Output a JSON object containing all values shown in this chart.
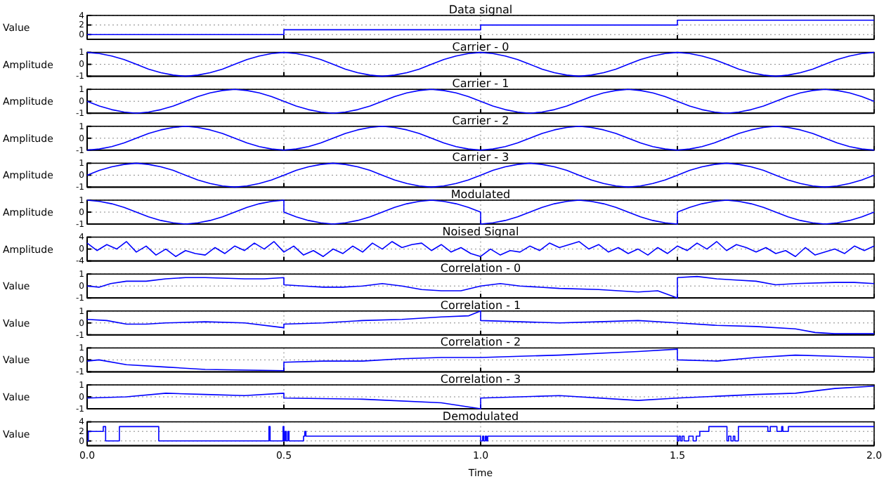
{
  "chart_data": [
    {
      "type": "step",
      "title": "Data signal",
      "ylabel": "Value",
      "x": [
        0,
        0.5,
        1,
        1.5,
        2
      ],
      "values": [
        0,
        1,
        2,
        3,
        3
      ],
      "color": "#0000ff",
      "xlim": [
        0,
        2
      ],
      "ylim": [
        -1,
        4
      ],
      "xticks": [
        0,
        0.5,
        1,
        1.5,
        2
      ],
      "yticks": [
        0,
        2,
        4
      ],
      "grid": true,
      "tick_labels": "y"
    },
    {
      "type": "line",
      "title": "Carrier - 0",
      "ylabel": "Amplitude",
      "x": [
        0,
        0.03125,
        0.0625,
        0.09375,
        0.125,
        0.15625,
        0.1875,
        0.21875,
        0.25,
        0.28125,
        0.3125,
        0.34375,
        0.375,
        0.40625,
        0.4375,
        0.46875,
        0.5,
        0.53125,
        0.5625,
        0.59375,
        0.625,
        0.65625,
        0.6875,
        0.71875,
        0.75,
        0.78125,
        0.8125,
        0.84375,
        0.875,
        0.90625,
        0.9375,
        0.96875,
        1,
        1.03125,
        1.0625,
        1.09375,
        1.125,
        1.15625,
        1.1875,
        1.21875,
        1.25,
        1.28125,
        1.3125,
        1.34375,
        1.375,
        1.40625,
        1.4375,
        1.46875,
        1.5,
        1.53125,
        1.5625,
        1.59375,
        1.625,
        1.65625,
        1.6875,
        1.71875,
        1.75,
        1.78125,
        1.8125,
        1.84375,
        1.875,
        1.90625,
        1.9375,
        1.96875,
        2
      ],
      "values": [
        1,
        0.9,
        0.7,
        0.4,
        0,
        -0.4,
        -0.7,
        -0.9,
        -1,
        -0.9,
        -0.7,
        -0.4,
        0,
        0.4,
        0.7,
        0.9,
        1,
        0.9,
        0.7,
        0.4,
        0,
        -0.4,
        -0.7,
        -0.9,
        -1,
        -0.9,
        -0.7,
        -0.4,
        0,
        0.4,
        0.7,
        0.9,
        1,
        0.9,
        0.7,
        0.4,
        0,
        -0.4,
        -0.7,
        -0.9,
        -1,
        -0.9,
        -0.7,
        -0.4,
        0,
        0.4,
        0.7,
        0.9,
        1,
        0.9,
        0.7,
        0.4,
        0,
        -0.4,
        -0.7,
        -0.9,
        -1,
        -0.9,
        -0.7,
        -0.4,
        0,
        0.4,
        0.7,
        0.9,
        1
      ],
      "color": "#0000ff",
      "xlim": [
        0,
        2
      ],
      "ylim": [
        -1,
        1
      ],
      "xticks": [
        0,
        0.5,
        1,
        1.5,
        2
      ],
      "yticks": [
        -1,
        0,
        1
      ],
      "grid": true,
      "tick_labels": "y"
    },
    {
      "type": "line",
      "title": "Carrier - 1",
      "ylabel": "Amplitude",
      "x": [
        0,
        0.03125,
        0.0625,
        0.09375,
        0.125,
        0.15625,
        0.1875,
        0.21875,
        0.25,
        0.28125,
        0.3125,
        0.34375,
        0.375,
        0.40625,
        0.4375,
        0.46875,
        0.5,
        0.53125,
        0.5625,
        0.59375,
        0.625,
        0.65625,
        0.6875,
        0.71875,
        0.75,
        0.78125,
        0.8125,
        0.84375,
        0.875,
        0.90625,
        0.9375,
        0.96875,
        1,
        1.03125,
        1.0625,
        1.09375,
        1.125,
        1.15625,
        1.1875,
        1.21875,
        1.25,
        1.28125,
        1.3125,
        1.34375,
        1.375,
        1.40625,
        1.4375,
        1.46875,
        1.5,
        1.53125,
        1.5625,
        1.59375,
        1.625,
        1.65625,
        1.6875,
        1.71875,
        1.75,
        1.78125,
        1.8125,
        1.84375,
        1.875,
        1.90625,
        1.9375,
        1.96875,
        2
      ],
      "values": [
        0,
        -0.4,
        -0.7,
        -0.9,
        -1,
        -0.9,
        -0.7,
        -0.4,
        0,
        0.4,
        0.7,
        0.9,
        1,
        0.9,
        0.7,
        0.4,
        0,
        -0.4,
        -0.7,
        -0.9,
        -1,
        -0.9,
        -0.7,
        -0.4,
        0,
        0.4,
        0.7,
        0.9,
        1,
        0.9,
        0.7,
        0.4,
        0,
        -0.4,
        -0.7,
        -0.9,
        -1,
        -0.9,
        -0.7,
        -0.4,
        0,
        0.4,
        0.7,
        0.9,
        1,
        0.9,
        0.7,
        0.4,
        0,
        -0.4,
        -0.7,
        -0.9,
        -1,
        -0.9,
        -0.7,
        -0.4,
        0,
        0.4,
        0.7,
        0.9,
        1,
        0.9,
        0.7,
        0.4,
        0
      ],
      "color": "#0000ff",
      "xlim": [
        0,
        2
      ],
      "ylim": [
        -1,
        1
      ],
      "xticks": [
        0,
        0.5,
        1,
        1.5,
        2
      ],
      "yticks": [
        -1,
        0,
        1
      ],
      "grid": true,
      "tick_labels": "y"
    },
    {
      "type": "line",
      "title": "Carrier - 2",
      "ylabel": "Amplitude",
      "x": [
        0,
        0.03125,
        0.0625,
        0.09375,
        0.125,
        0.15625,
        0.1875,
        0.21875,
        0.25,
        0.28125,
        0.3125,
        0.34375,
        0.375,
        0.40625,
        0.4375,
        0.46875,
        0.5,
        0.53125,
        0.5625,
        0.59375,
        0.625,
        0.65625,
        0.6875,
        0.71875,
        0.75,
        0.78125,
        0.8125,
        0.84375,
        0.875,
        0.90625,
        0.9375,
        0.96875,
        1,
        1.03125,
        1.0625,
        1.09375,
        1.125,
        1.15625,
        1.1875,
        1.21875,
        1.25,
        1.28125,
        1.3125,
        1.34375,
        1.375,
        1.40625,
        1.4375,
        1.46875,
        1.5,
        1.53125,
        1.5625,
        1.59375,
        1.625,
        1.65625,
        1.6875,
        1.71875,
        1.75,
        1.78125,
        1.8125,
        1.84375,
        1.875,
        1.90625,
        1.9375,
        1.96875,
        2
      ],
      "values": [
        -1,
        -0.9,
        -0.7,
        -0.4,
        0,
        0.4,
        0.7,
        0.9,
        1,
        0.9,
        0.7,
        0.4,
        0,
        -0.4,
        -0.7,
        -0.9,
        -1,
        -0.9,
        -0.7,
        -0.4,
        0,
        0.4,
        0.7,
        0.9,
        1,
        0.9,
        0.7,
        0.4,
        0,
        -0.4,
        -0.7,
        -0.9,
        -1,
        -0.9,
        -0.7,
        -0.4,
        0,
        0.4,
        0.7,
        0.9,
        1,
        0.9,
        0.7,
        0.4,
        0,
        -0.4,
        -0.7,
        -0.9,
        -1,
        -0.9,
        -0.7,
        -0.4,
        0,
        0.4,
        0.7,
        0.9,
        1,
        0.9,
        0.7,
        0.4,
        0,
        -0.4,
        -0.7,
        -0.9,
        -1
      ],
      "color": "#0000ff",
      "xlim": [
        0,
        2
      ],
      "ylim": [
        -1,
        1
      ],
      "xticks": [
        0,
        0.5,
        1,
        1.5,
        2
      ],
      "yticks": [
        -1,
        0,
        1
      ],
      "grid": true,
      "tick_labels": "y"
    },
    {
      "type": "line",
      "title": "Carrier - 3",
      "ylabel": "Amplitude",
      "x": [
        0,
        0.03125,
        0.0625,
        0.09375,
        0.125,
        0.15625,
        0.1875,
        0.21875,
        0.25,
        0.28125,
        0.3125,
        0.34375,
        0.375,
        0.40625,
        0.4375,
        0.46875,
        0.5,
        0.53125,
        0.5625,
        0.59375,
        0.625,
        0.65625,
        0.6875,
        0.71875,
        0.75,
        0.78125,
        0.8125,
        0.84375,
        0.875,
        0.90625,
        0.9375,
        0.96875,
        1,
        1.03125,
        1.0625,
        1.09375,
        1.125,
        1.15625,
        1.1875,
        1.21875,
        1.25,
        1.28125,
        1.3125,
        1.34375,
        1.375,
        1.40625,
        1.4375,
        1.46875,
        1.5,
        1.53125,
        1.5625,
        1.59375,
        1.625,
        1.65625,
        1.6875,
        1.71875,
        1.75,
        1.78125,
        1.8125,
        1.84375,
        1.875,
        1.90625,
        1.9375,
        1.96875,
        2
      ],
      "values": [
        0,
        0.4,
        0.7,
        0.9,
        1,
        0.9,
        0.7,
        0.4,
        0,
        -0.4,
        -0.7,
        -0.9,
        -1,
        -0.9,
        -0.7,
        -0.4,
        0,
        0.4,
        0.7,
        0.9,
        1,
        0.9,
        0.7,
        0.4,
        0,
        -0.4,
        -0.7,
        -0.9,
        -1,
        -0.9,
        -0.7,
        -0.4,
        0,
        0.4,
        0.7,
        0.9,
        1,
        0.9,
        0.7,
        0.4,
        0,
        -0.4,
        -0.7,
        -0.9,
        -1,
        -0.9,
        -0.7,
        -0.4,
        0,
        0.4,
        0.7,
        0.9,
        1,
        0.9,
        0.7,
        0.4,
        0,
        -0.4,
        -0.7,
        -0.9,
        -1,
        -0.9,
        -0.7,
        -0.4,
        0
      ],
      "color": "#0000ff",
      "xlim": [
        0,
        2
      ],
      "ylim": [
        -1,
        1
      ],
      "xticks": [
        0,
        0.5,
        1,
        1.5,
        2
      ],
      "yticks": [
        -1,
        0,
        1
      ],
      "grid": true,
      "tick_labels": "y"
    },
    {
      "type": "line",
      "title": "Modulated",
      "ylabel": "Amplitude",
      "x": [
        0,
        0.03125,
        0.0625,
        0.09375,
        0.125,
        0.15625,
        0.1875,
        0.21875,
        0.25,
        0.28125,
        0.3125,
        0.34375,
        0.375,
        0.40625,
        0.4375,
        0.46875,
        0.5,
        0.5,
        0.53125,
        0.5625,
        0.59375,
        0.625,
        0.65625,
        0.6875,
        0.71875,
        0.75,
        0.78125,
        0.8125,
        0.84375,
        0.875,
        0.90625,
        0.9375,
        0.96875,
        1,
        1,
        1.03125,
        1.0625,
        1.09375,
        1.125,
        1.15625,
        1.1875,
        1.21875,
        1.25,
        1.28125,
        1.3125,
        1.34375,
        1.375,
        1.40625,
        1.4375,
        1.46875,
        1.5,
        1.5,
        1.53125,
        1.5625,
        1.59375,
        1.625,
        1.65625,
        1.6875,
        1.71875,
        1.75,
        1.78125,
        1.8125,
        1.84375,
        1.875,
        1.90625,
        1.9375,
        1.96875,
        2
      ],
      "values": [
        1,
        0.9,
        0.7,
        0.4,
        0,
        -0.4,
        -0.7,
        -0.9,
        -1,
        -0.9,
        -0.7,
        -0.4,
        0,
        0.4,
        0.7,
        0.9,
        1,
        0,
        -0.4,
        -0.7,
        -0.9,
        -1,
        -0.9,
        -0.7,
        -0.4,
        0,
        0.4,
        0.7,
        0.9,
        1,
        0.9,
        0.7,
        0.4,
        0,
        -1,
        -0.9,
        -0.7,
        -0.4,
        0,
        0.4,
        0.7,
        0.9,
        1,
        0.9,
        0.7,
        0.4,
        0,
        -0.4,
        -0.7,
        -0.9,
        -1,
        0,
        0.4,
        0.7,
        0.9,
        1,
        0.9,
        0.7,
        0.4,
        0,
        -0.4,
        -0.7,
        -0.9,
        -1,
        -0.9,
        -0.7,
        -0.4,
        0
      ],
      "color": "#0000ff",
      "xlim": [
        0,
        2
      ],
      "ylim": [
        -1,
        1
      ],
      "xticks": [
        0,
        0.5,
        1,
        1.5,
        2
      ],
      "yticks": [
        -1,
        0,
        1
      ],
      "grid": true,
      "tick_labels": "y"
    },
    {
      "type": "line",
      "title": "Noised Signal",
      "ylabel": "Amplitude",
      "x": [
        0,
        0.025,
        0.05,
        0.075,
        0.1,
        0.125,
        0.15,
        0.175,
        0.2,
        0.225,
        0.25,
        0.275,
        0.3,
        0.325,
        0.35,
        0.375,
        0.4,
        0.425,
        0.45,
        0.475,
        0.5,
        0.525,
        0.55,
        0.575,
        0.6,
        0.625,
        0.65,
        0.675,
        0.7,
        0.725,
        0.75,
        0.775,
        0.8,
        0.825,
        0.85,
        0.875,
        0.9,
        0.925,
        0.95,
        0.975,
        1,
        1.025,
        1.05,
        1.075,
        1.1,
        1.125,
        1.15,
        1.175,
        1.2,
        1.225,
        1.25,
        1.275,
        1.3,
        1.325,
        1.35,
        1.375,
        1.4,
        1.425,
        1.45,
        1.475,
        1.5,
        1.525,
        1.55,
        1.575,
        1.6,
        1.625,
        1.65,
        1.675,
        1.7,
        1.725,
        1.75,
        1.775,
        1.8,
        1.825,
        1.85,
        1.875,
        1.9,
        1.925,
        1.95,
        1.975,
        2
      ],
      "values": [
        2,
        -0.5,
        1.5,
        0,
        2.5,
        -1,
        1,
        -2,
        0,
        -2.5,
        -0.5,
        -1.5,
        -2,
        0.5,
        -1.5,
        1,
        -0.5,
        2,
        0,
        2.5,
        -1,
        1,
        -2,
        -0.5,
        -2.5,
        0,
        -1.5,
        1,
        -1,
        2,
        0,
        2.5,
        0.5,
        1.5,
        2,
        -0.5,
        1.5,
        -1,
        0.5,
        -1.5,
        -2.5,
        0,
        -2,
        -0.5,
        -1,
        1,
        -0.5,
        2,
        0.5,
        1.5,
        2.5,
        0,
        1.5,
        -1,
        0.5,
        -1.5,
        0,
        -2,
        0.5,
        -1.5,
        1,
        -0.5,
        2,
        0,
        2.5,
        -0.5,
        1.5,
        0.5,
        -1,
        0.5,
        -1.5,
        -0.5,
        -2.5,
        0.5,
        -2,
        -1,
        0,
        -1.5,
        1,
        -0.5,
        1
      ],
      "color": "#0000ff",
      "xlim": [
        0,
        2
      ],
      "ylim": [
        -4,
        4
      ],
      "xticks": [
        0,
        0.5,
        1,
        1.5,
        2
      ],
      "yticks": [
        -4,
        0,
        4
      ],
      "grid": true,
      "tick_labels": "y"
    },
    {
      "type": "line",
      "title": "Correlation - 0",
      "ylabel": "Value",
      "x": [
        0,
        0.03,
        0.06,
        0.1,
        0.15,
        0.2,
        0.25,
        0.3,
        0.4,
        0.45,
        0.5,
        0.5,
        0.55,
        0.6,
        0.65,
        0.7,
        0.75,
        0.8,
        0.85,
        0.9,
        0.95,
        1,
        1.05,
        1.1,
        1.2,
        1.3,
        1.4,
        1.45,
        1.5,
        1.5,
        1.55,
        1.6,
        1.65,
        1.7,
        1.75,
        1.8,
        1.9,
        1.95,
        2
      ],
      "values": [
        0,
        -0.1,
        0.2,
        0.4,
        0.4,
        0.6,
        0.7,
        0.7,
        0.6,
        0.6,
        0.7,
        0.1,
        0,
        -0.1,
        -0.1,
        0,
        0.2,
        0,
        -0.3,
        -0.4,
        -0.4,
        0,
        0.2,
        0,
        -0.2,
        -0.3,
        -0.5,
        -0.4,
        -1,
        0.7,
        0.8,
        0.6,
        0.5,
        0.4,
        0.1,
        0.2,
        0.3,
        0.3,
        0.2
      ],
      "color": "#0000ff",
      "xlim": [
        0,
        2
      ],
      "ylim": [
        -1,
        1
      ],
      "xticks": [
        0,
        0.5,
        1,
        1.5,
        2
      ],
      "yticks": [
        -1,
        0,
        1
      ],
      "grid": true,
      "tick_labels": "y"
    },
    {
      "type": "line",
      "title": "Correlation - 1",
      "ylabel": "Value",
      "x": [
        0,
        0.05,
        0.1,
        0.15,
        0.2,
        0.3,
        0.4,
        0.5,
        0.5,
        0.6,
        0.7,
        0.8,
        0.9,
        0.97,
        1,
        1,
        1.1,
        1.2,
        1.3,
        1.4,
        1.5,
        1.6,
        1.7,
        1.8,
        1.85,
        1.9,
        2
      ],
      "values": [
        0.3,
        0.2,
        -0.1,
        -0.1,
        0,
        0.1,
        0,
        -0.4,
        -0.1,
        0,
        0.2,
        0.3,
        0.5,
        0.6,
        1,
        0.2,
        0.1,
        0,
        0.1,
        0.2,
        0,
        -0.2,
        -0.3,
        -0.5,
        -0.8,
        -0.9,
        -0.9
      ],
      "color": "#0000ff",
      "xlim": [
        0,
        2
      ],
      "ylim": [
        -1,
        1
      ],
      "xticks": [
        0,
        0.5,
        1,
        1.5,
        2
      ],
      "yticks": [
        -1,
        0,
        1
      ],
      "grid": true,
      "tick_labels": "y"
    },
    {
      "type": "line",
      "title": "Correlation - 2",
      "ylabel": "Value",
      "x": [
        0,
        0.03,
        0.1,
        0.2,
        0.3,
        0.5,
        0.5,
        0.6,
        0.7,
        0.8,
        0.9,
        1,
        1.2,
        1.4,
        1.5,
        1.5,
        1.6,
        1.7,
        1.8,
        1.9,
        2
      ],
      "values": [
        -0.1,
        0,
        -0.4,
        -0.6,
        -0.8,
        -0.9,
        -0.2,
        -0.1,
        -0.1,
        0.1,
        0.2,
        0.2,
        0.4,
        0.7,
        0.9,
        0,
        -0.1,
        0.2,
        0.4,
        0.3,
        0.2
      ],
      "color": "#0000ff",
      "xlim": [
        0,
        2
      ],
      "ylim": [
        -1,
        1
      ],
      "xticks": [
        0,
        0.5,
        1,
        1.5,
        2
      ],
      "yticks": [
        -1,
        0,
        1
      ],
      "grid": true,
      "tick_labels": "y"
    },
    {
      "type": "line",
      "title": "Correlation - 3",
      "ylabel": "Value",
      "x": [
        0,
        0.1,
        0.2,
        0.3,
        0.4,
        0.5,
        0.5,
        0.7,
        0.9,
        1,
        1,
        1.2,
        1.4,
        1.5,
        1.7,
        1.8,
        1.9,
        2
      ],
      "values": [
        -0.1,
        0,
        0.3,
        0.2,
        0.1,
        0.3,
        -0.1,
        -0.2,
        -0.5,
        -1,
        -0.1,
        0.1,
        -0.3,
        -0.1,
        0.2,
        0.3,
        0.7,
        0.9
      ],
      "color": "#0000ff",
      "xlim": [
        0,
        2
      ],
      "ylim": [
        -1,
        1
      ],
      "xticks": [
        0,
        0.5,
        1,
        1.5,
        2
      ],
      "yticks": [
        -1,
        0,
        1
      ],
      "grid": true,
      "tick_labels": "y"
    },
    {
      "type": "step",
      "title": "Demodulated",
      "ylabel": "Value",
      "xlabel": "Time",
      "x": [
        0,
        0.003,
        0.041,
        0.047,
        0.082,
        0.182,
        0.462,
        0.465,
        0.498,
        0.5,
        0.503,
        0.506,
        0.51,
        0.513,
        0.55,
        0.553,
        0.556,
        1,
        1.005,
        1.008,
        1.012,
        1.015,
        1.018,
        1.5,
        1.504,
        1.508,
        1.512,
        1.517,
        1.529,
        1.54,
        1.548,
        1.557,
        1.58,
        1.626,
        1.63,
        1.636,
        1.642,
        1.646,
        1.655,
        1.73,
        1.736,
        1.753,
        1.765,
        1.768,
        1.782,
        2
      ],
      "values": [
        0,
        2,
        3,
        0,
        3,
        0,
        3,
        0,
        3,
        0,
        2,
        0,
        2,
        0,
        1,
        2,
        1,
        0,
        1,
        0,
        1,
        0,
        1,
        0,
        1,
        0,
        1,
        0,
        1,
        0,
        1,
        2,
        3,
        0,
        1,
        0,
        1,
        0,
        3,
        2,
        3,
        2,
        3,
        2,
        3,
        3
      ],
      "color": "#0000ff",
      "xlim": [
        0,
        2
      ],
      "ylim": [
        -1,
        4
      ],
      "xticks": [
        {
          "value": 0,
          "label": "0.0"
        },
        {
          "value": 0.5,
          "label": "0.5"
        },
        {
          "value": 1,
          "label": "1.0"
        },
        {
          "value": 1.5,
          "label": "1.5"
        },
        {
          "value": 2,
          "label": "2.0"
        }
      ],
      "yticks": [
        0,
        2,
        4
      ],
      "grid": true
    }
  ]
}
